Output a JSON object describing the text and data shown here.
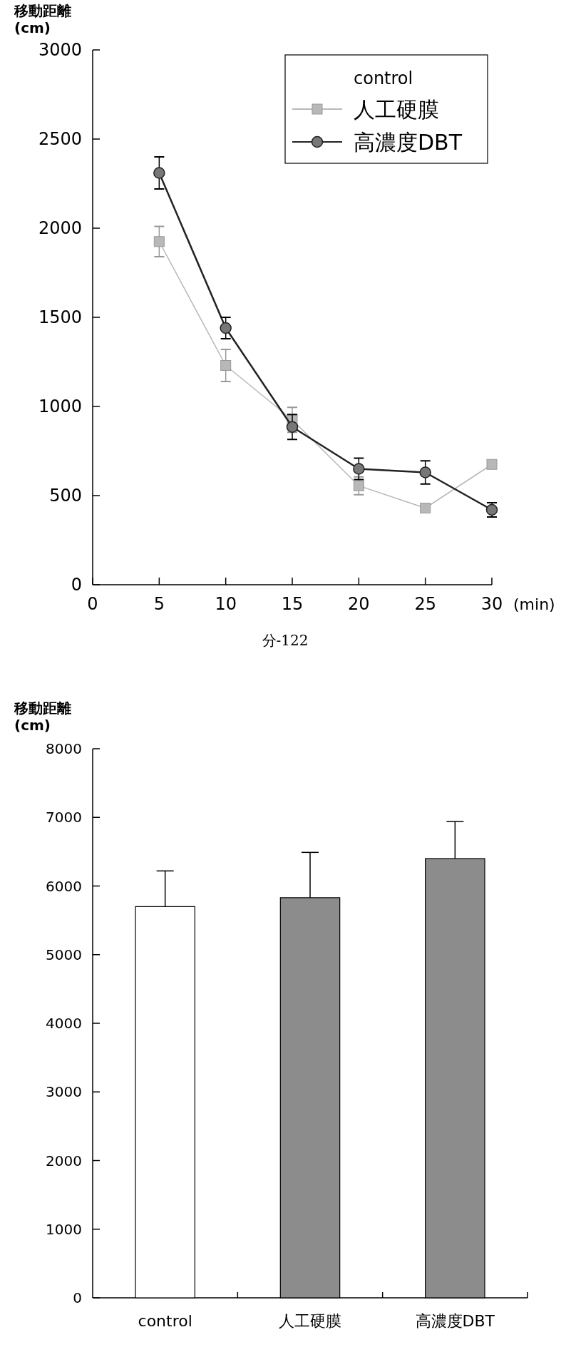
{
  "chart_data": [
    {
      "type": "line",
      "ylabel": "移動距離\n(cm)",
      "xlabel": "(min)",
      "x": [
        5,
        10,
        15,
        20,
        25,
        30
      ],
      "xlim": [
        0,
        30
      ],
      "xticks": [
        0,
        5,
        10,
        15,
        20,
        25,
        30
      ],
      "ylim": [
        0,
        3000
      ],
      "yticks": [
        0,
        500,
        1000,
        1500,
        2000,
        2500,
        3000
      ],
      "grid": false,
      "legend": "top right",
      "series": [
        {
          "name": "control",
          "values": [
            null,
            null,
            null,
            null,
            null,
            null
          ]
        },
        {
          "name": "人工硬膜",
          "color": "#b8b8b8",
          "marker": "square",
          "values": [
            1925,
            1230,
            925,
            555,
            430,
            675
          ],
          "errors": [
            85,
            90,
            70,
            50,
            20,
            20
          ]
        },
        {
          "name": "高濃度DBT",
          "color": "#222222",
          "marker": "circle",
          "values": [
            2310,
            1440,
            885,
            650,
            630,
            420
          ],
          "errors": [
            90,
            60,
            70,
            60,
            65,
            40
          ]
        }
      ],
      "annotations": [
        "分-122"
      ]
    },
    {
      "type": "bar",
      "ylabel": "移動距離\n(cm)",
      "categories": [
        "control",
        "人工硬膜",
        "高濃度DBT"
      ],
      "values": [
        5700,
        5830,
        6400
      ],
      "colors": [
        "#ffffff",
        "#8c8c8c",
        "#8c8c8c"
      ],
      "errors": [
        [
          5700,
          6220
        ],
        [
          5830,
          6490
        ],
        [
          6400,
          6940
        ]
      ],
      "ylim": [
        0,
        8000
      ],
      "yticks": [
        0,
        1000,
        2000,
        3000,
        4000,
        5000,
        6000,
        7000,
        8000
      ],
      "grid": false,
      "legend": false
    }
  ]
}
